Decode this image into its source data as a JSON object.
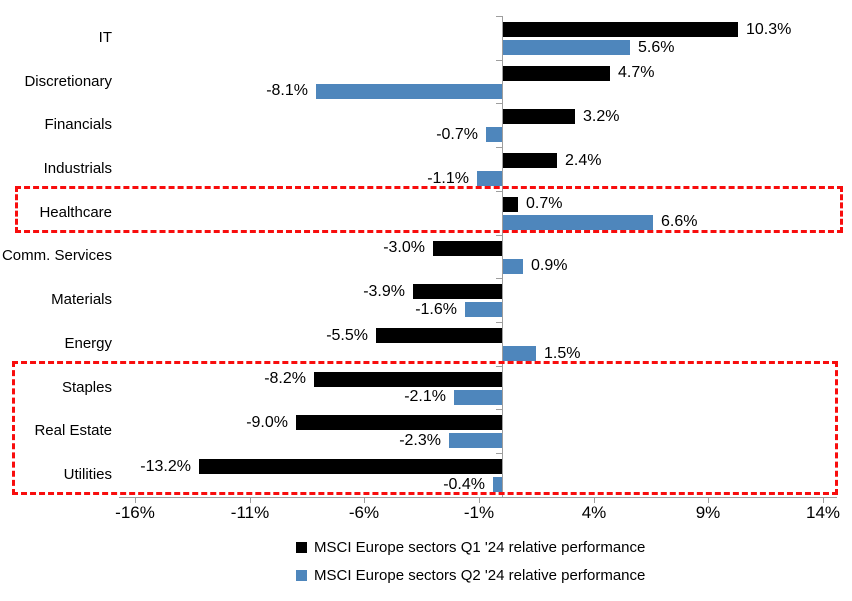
{
  "chart_data": {
    "type": "bar",
    "orientation": "horizontal",
    "title": "",
    "categories": [
      "IT",
      "Discretionary",
      "Financials",
      "Industrials",
      "Healthcare",
      "Comm. Services",
      "Materials",
      "Energy",
      "Staples",
      "Real Estate",
      "Utilities"
    ],
    "series": [
      {
        "name": "MSCI Europe sectors Q1 '24 relative performance",
        "color": "#000000",
        "values": [
          10.3,
          4.7,
          3.2,
          2.4,
          0.7,
          -3.0,
          -3.9,
          -5.5,
          -8.2,
          -9.0,
          -13.2
        ],
        "labels": [
          "10.3%",
          "4.7%",
          "3.2%",
          "2.4%",
          "0.7%",
          "-3.0%",
          "-3.9%",
          "-5.5%",
          "-8.2%",
          "-9.0%",
          "-13.2%"
        ]
      },
      {
        "name": "MSCI Europe sectors Q2 '24 relative performance",
        "color": "#4e86bc",
        "values": [
          5.6,
          -8.1,
          -0.7,
          -1.1,
          6.6,
          0.9,
          -1.6,
          1.5,
          -2.1,
          -2.3,
          -0.4
        ],
        "labels": [
          "5.6%",
          "-8.1%",
          "-0.7%",
          "-1.1%",
          "6.6%",
          "0.9%",
          "-1.6%",
          "1.5%",
          "-2.1%",
          "-2.3%",
          "-0.4%"
        ]
      }
    ],
    "x_axis": {
      "tick_labels": [
        "-16%",
        "-11%",
        "-6%",
        "-1%",
        "4%",
        "9%",
        "14%"
      ],
      "tick_values": [
        -16,
        -11,
        -6,
        -1,
        4,
        9,
        14
      ],
      "xlim": [
        -16.7,
        14.6
      ],
      "grid": false
    },
    "legend_position": "bottom",
    "highlights": [
      {
        "style": "dashed",
        "color": "#f80d0d",
        "categories": [
          "Healthcare"
        ]
      },
      {
        "style": "dashed",
        "color": "#f80d0d",
        "categories": [
          "Staples",
          "Real Estate",
          "Utilities"
        ]
      }
    ]
  }
}
